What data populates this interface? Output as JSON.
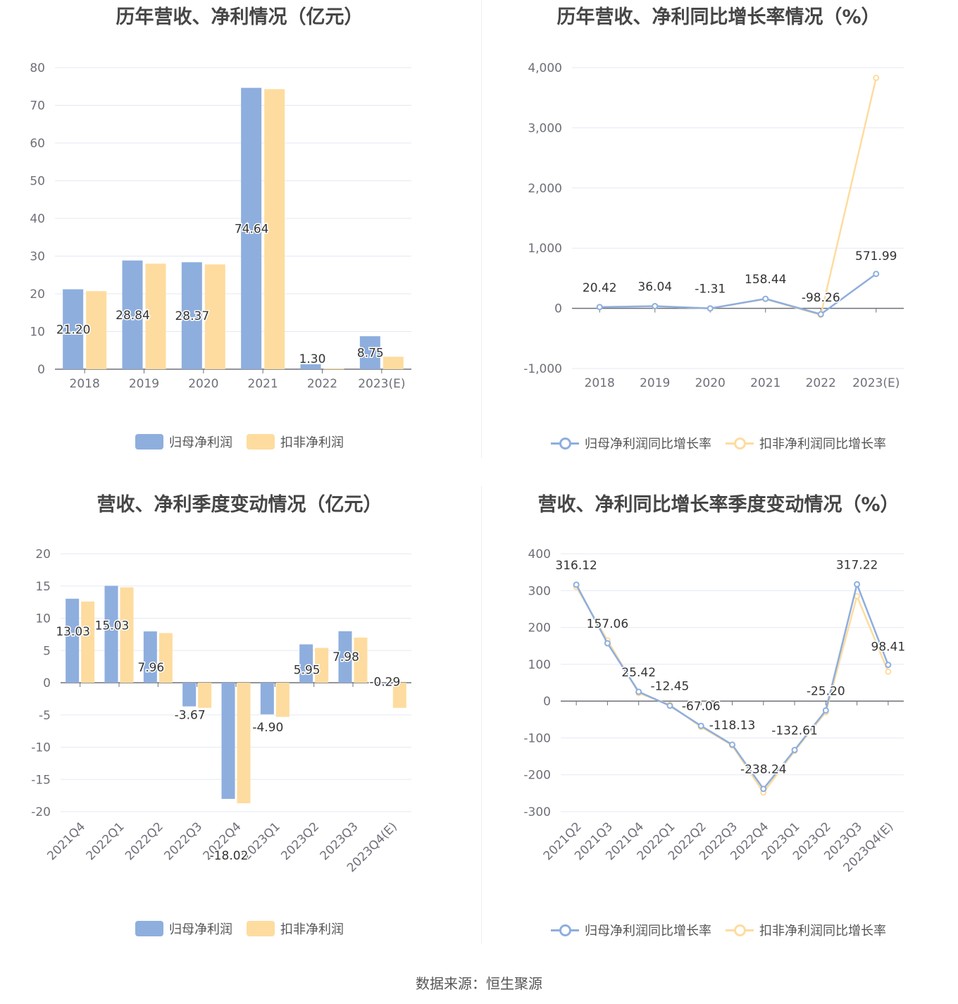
{
  "colors": {
    "primary": "#8eaede",
    "secondary": "#fedc9f",
    "grid": "#e6e9f5",
    "axis": "#6e7079",
    "label": "#333333",
    "tick": "#6e7079"
  },
  "source_label": "数据来源：",
  "source_name": "恒生聚源",
  "chart_data": [
    {
      "id": "annual-profit",
      "type": "bar",
      "title": "历年营收、净利情况（亿元）",
      "categories": [
        "2018",
        "2019",
        "2020",
        "2021",
        "2022",
        "2023(E)"
      ],
      "series": [
        {
          "name": "归母净利润",
          "values": [
            21.2,
            28.84,
            28.37,
            74.64,
            1.3,
            8.75
          ]
        },
        {
          "name": "扣非净利润",
          "values": [
            20.7,
            28.0,
            27.8,
            74.3,
            0.15,
            3.3
          ]
        }
      ],
      "data_labels": [
        "21.20",
        "28.84",
        "28.37",
        "74.64",
        "1.30",
        "8.75"
      ],
      "yticks": [
        0,
        10,
        20,
        30,
        40,
        50,
        60,
        70,
        80
      ],
      "ylim": [
        0,
        80
      ],
      "legend": "bottom"
    },
    {
      "id": "annual-growth",
      "type": "line",
      "title": "历年营收、净利同比增长率情况（%）",
      "categories": [
        "2018",
        "2019",
        "2020",
        "2021",
        "2022",
        "2023(E)"
      ],
      "series": [
        {
          "name": "归母净利润同比增长率",
          "values": [
            20.42,
            36.04,
            -1.31,
            158.44,
            -98.26,
            571.99
          ]
        },
        {
          "name": "扣非净利润同比增长率",
          "values": [
            22,
            35,
            0,
            155,
            -110,
            3830
          ]
        }
      ],
      "data_labels": [
        "20.42",
        "36.04",
        "-1.31",
        "158.44",
        "-98.26",
        "571.99"
      ],
      "yticks": [
        -1000,
        0,
        1000,
        2000,
        3000,
        4000
      ],
      "ytick_labels": [
        "-1,000",
        "0",
        "1,000",
        "2,000",
        "3,000",
        "4,000"
      ],
      "ylim": [
        -1000,
        4000
      ],
      "legend": "bottom"
    },
    {
      "id": "quarterly-profit",
      "type": "bar",
      "title": "营收、净利季度变动情况（亿元）",
      "categories": [
        "2021Q4",
        "2022Q1",
        "2022Q2",
        "2022Q3",
        "2022Q4",
        "2023Q1",
        "2023Q2",
        "2023Q3",
        "2023Q4(E)"
      ],
      "series": [
        {
          "name": "归母净利润",
          "values": [
            13.03,
            15.03,
            7.96,
            -3.67,
            -18.02,
            -4.9,
            5.95,
            7.98,
            -0.29
          ]
        },
        {
          "name": "扣非净利润",
          "values": [
            12.6,
            14.8,
            7.7,
            -3.9,
            -18.7,
            -5.3,
            5.4,
            7.0,
            -3.9
          ]
        }
      ],
      "data_labels": [
        "13.03",
        "15.03",
        "7.96",
        "-3.67",
        "-18.02",
        "-4.90",
        "5.95",
        "7.98",
        "-0.29"
      ],
      "yticks": [
        -20,
        -15,
        -10,
        -5,
        0,
        5,
        10,
        15,
        20
      ],
      "ylim": [
        -20,
        20
      ],
      "legend": "bottom"
    },
    {
      "id": "quarterly-growth",
      "type": "line",
      "title": "营收、净利同比增长率季度变动情况（%）",
      "categories": [
        "2021Q2",
        "2021Q3",
        "2021Q4",
        "2022Q1",
        "2022Q2",
        "2022Q3",
        "2022Q4",
        "2023Q1",
        "2023Q2",
        "2023Q3",
        "2023Q4(E)"
      ],
      "series": [
        {
          "name": "归母净利润同比增长率",
          "values": [
            316.12,
            157.06,
            25.42,
            -12.45,
            -67.06,
            -118.13,
            -238.24,
            -132.61,
            -25.2,
            317.22,
            98.41
          ]
        },
        {
          "name": "扣非净利润同比增长率",
          "values": [
            310,
            165,
            22,
            -10,
            -70,
            -120,
            -248,
            -135,
            -30,
            285,
            80
          ]
        }
      ],
      "data_labels": [
        "316.12",
        "157.06",
        "25.42",
        "-12.45",
        "-67.06",
        "-118.13",
        "-238.24",
        "-132.61",
        "-25.20",
        "317.22",
        "98.41"
      ],
      "yticks": [
        -300,
        -200,
        -100,
        0,
        100,
        200,
        300,
        400
      ],
      "ylim": [
        -300,
        400
      ],
      "legend": "bottom"
    }
  ]
}
